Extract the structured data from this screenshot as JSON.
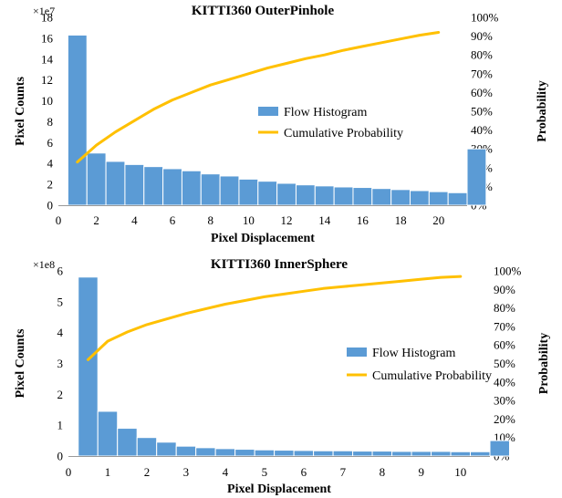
{
  "colors": {
    "bar": "#5b9bd5",
    "bar_edge": "#ffffff",
    "line": "#ffc000",
    "axis": "#999999"
  },
  "chart_data": [
    {
      "type": "bar",
      "title": "KITTI360 OuterPinhole",
      "xlabel": "Pixel Displacement",
      "ylabel": "Pixel Counts",
      "y2label": "Probability",
      "multiplier": "×1e7",
      "xlim": [
        0,
        21.5
      ],
      "ylim": [
        0,
        18
      ],
      "y2lim": [
        0,
        100
      ],
      "xticks": [
        "0",
        "2",
        "4",
        "6",
        "8",
        "10",
        "12",
        "14",
        "16",
        "18",
        "20"
      ],
      "yticks": [
        "0",
        "2",
        "4",
        "6",
        "8",
        "10",
        "12",
        "14",
        "16",
        "18"
      ],
      "y2ticks": [
        "0%",
        "10%",
        "20%",
        "30%",
        "40%",
        "50%",
        "60%",
        "70%",
        "80%",
        "90%",
        "100%"
      ],
      "bar_start": 0.5,
      "bar_width": 1,
      "histogram": {
        "name": "Flow Histogram",
        "values": [
          16.3,
          5.0,
          4.2,
          3.9,
          3.7,
          3.5,
          3.3,
          3.0,
          2.8,
          2.5,
          2.3,
          2.1,
          1.95,
          1.85,
          1.75,
          1.7,
          1.6,
          1.5,
          1.4,
          1.3,
          1.2,
          5.4
        ]
      },
      "cumulative": {
        "name": "Cumulative Probability",
        "x": [
          1,
          2,
          3,
          4,
          5,
          6,
          7,
          8,
          9,
          10,
          11,
          12,
          13,
          14,
          15,
          16,
          17,
          18,
          19,
          20
        ],
        "values": [
          23,
          32,
          39,
          45,
          51,
          56,
          60,
          64,
          67,
          70,
          73,
          75.5,
          78,
          80,
          82.5,
          84.5,
          86.5,
          88.5,
          90.5,
          92
        ]
      },
      "legend": "center"
    },
    {
      "type": "bar",
      "title": "KITTI360 InnerSphere",
      "xlabel": "Pixel Displacement",
      "ylabel": "Pixel Counts",
      "y2label": "Probability",
      "multiplier": "×1e8",
      "xlim": [
        0,
        10.75
      ],
      "ylim": [
        0,
        6
      ],
      "y2lim": [
        0,
        100
      ],
      "xticks": [
        "0",
        "1",
        "2",
        "3",
        "4",
        "5",
        "6",
        "7",
        "8",
        "9",
        "10"
      ],
      "yticks": [
        "0",
        "1",
        "2",
        "3",
        "4",
        "5",
        "6"
      ],
      "y2ticks": [
        "0%",
        "10%",
        "20%",
        "30%",
        "40%",
        "50%",
        "60%",
        "70%",
        "80%",
        "90%",
        "100%"
      ],
      "bar_start": 0.25,
      "bar_width": 0.5,
      "histogram": {
        "name": "Flow Histogram",
        "values": [
          5.8,
          1.45,
          0.9,
          0.6,
          0.45,
          0.32,
          0.27,
          0.24,
          0.22,
          0.2,
          0.19,
          0.18,
          0.17,
          0.17,
          0.16,
          0.16,
          0.15,
          0.15,
          0.15,
          0.14,
          0.14,
          0.5
        ]
      },
      "cumulative": {
        "name": "Cumulative Probability",
        "x": [
          0.5,
          0.75,
          1,
          1.5,
          2,
          2.5,
          3,
          3.5,
          4,
          4.5,
          5,
          5.5,
          6,
          6.5,
          7,
          7.5,
          8,
          8.5,
          9,
          9.5,
          10
        ],
        "values": [
          52,
          57,
          62,
          67,
          71,
          74,
          77,
          79.5,
          82,
          84,
          86,
          87.5,
          89,
          90.5,
          91.5,
          92.5,
          93.5,
          94.5,
          95.5,
          96.5,
          97
        ]
      },
      "legend": "center"
    }
  ]
}
